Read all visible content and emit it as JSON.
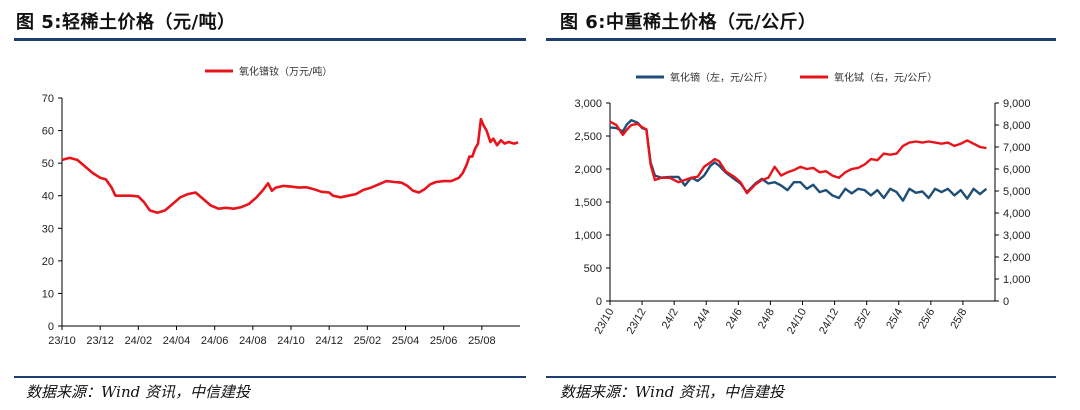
{
  "left_panel": {
    "title": "图 5:轻稀土价格（元/吨）",
    "source": "数据来源：Wind 资讯，中信建投"
  },
  "right_panel": {
    "title": "图 6:中重稀土价格（元/公斤）",
    "source": "数据来源：Wind 资讯，中信建投"
  },
  "colors": {
    "rule": "#1e3f73",
    "series_red": "#e8141c",
    "series_blue": "#1f4e79"
  },
  "chart_data": [
    {
      "type": "line",
      "title": "",
      "xlabel": "",
      "ylabel": "",
      "ylim": [
        0,
        70
      ],
      "yticks": [
        "0",
        "10",
        "20",
        "30",
        "40",
        "50",
        "60",
        "70"
      ],
      "xticks": [
        "23/10",
        "23/12",
        "24/02",
        "24/04",
        "24/06",
        "24/08",
        "24/10",
        "24/12",
        "25/02",
        "25/04",
        "25/06",
        "25/08"
      ],
      "legend_position": "top",
      "grid": false,
      "series": [
        {
          "name": "氧化镨钕（万元/吨）",
          "color": "#e8141c",
          "points": [
            [
              0,
              51
            ],
            [
              0.4,
              51.6
            ],
            [
              0.8,
              51
            ],
            [
              1.2,
              49
            ],
            [
              1.6,
              47
            ],
            [
              2.0,
              45.5
            ],
            [
              2.3,
              45
            ],
            [
              2.6,
              42.5
            ],
            [
              2.8,
              40
            ],
            [
              3.2,
              40
            ],
            [
              3.6,
              40
            ],
            [
              4.0,
              39.8
            ],
            [
              4.3,
              38
            ],
            [
              4.6,
              35.5
            ],
            [
              5.0,
              34.8
            ],
            [
              5.4,
              35.5
            ],
            [
              5.8,
              37.5
            ],
            [
              6.2,
              39.5
            ],
            [
              6.6,
              40.5
            ],
            [
              7.0,
              41
            ],
            [
              7.4,
              39
            ],
            [
              7.8,
              37
            ],
            [
              8.2,
              36
            ],
            [
              8.6,
              36.3
            ],
            [
              9.0,
              36
            ],
            [
              9.4,
              36.5
            ],
            [
              9.8,
              37.5
            ],
            [
              10.2,
              39.5
            ],
            [
              10.5,
              41.5
            ],
            [
              10.8,
              43.8
            ],
            [
              11.0,
              41.5
            ],
            [
              11.2,
              42.5
            ],
            [
              11.6,
              43
            ],
            [
              12.0,
              42.8
            ],
            [
              12.4,
              42.5
            ],
            [
              12.8,
              42.6
            ],
            [
              13.2,
              42
            ],
            [
              13.6,
              41.2
            ],
            [
              14.0,
              41
            ],
            [
              14.2,
              40
            ],
            [
              14.6,
              39.5
            ],
            [
              15.0,
              40
            ],
            [
              15.4,
              40.5
            ],
            [
              15.8,
              41.8
            ],
            [
              16.2,
              42.5
            ],
            [
              16.6,
              43.5
            ],
            [
              17.0,
              44.5
            ],
            [
              17.4,
              44.2
            ],
            [
              17.8,
              44
            ],
            [
              18.1,
              43
            ],
            [
              18.4,
              41.5
            ],
            [
              18.7,
              41
            ],
            [
              19.0,
              42
            ],
            [
              19.3,
              43.5
            ],
            [
              19.6,
              44.2
            ],
            [
              20.0,
              44.5
            ],
            [
              20.4,
              44.5
            ],
            [
              20.8,
              45.5
            ],
            [
              21.0,
              47
            ],
            [
              21.2,
              49.5
            ],
            [
              21.35,
              52
            ],
            [
              21.5,
              52
            ],
            [
              21.65,
              54.5
            ],
            [
              21.8,
              56
            ],
            [
              21.95,
              63.5
            ],
            [
              22.1,
              61.5
            ],
            [
              22.25,
              60
            ],
            [
              22.45,
              56.5
            ],
            [
              22.6,
              57.5
            ],
            [
              22.8,
              55.5
            ],
            [
              23.0,
              57
            ],
            [
              23.2,
              56
            ],
            [
              23.4,
              56.5
            ],
            [
              23.7,
              56
            ],
            [
              23.9,
              56.4
            ]
          ]
        }
      ]
    },
    {
      "type": "line",
      "title": "",
      "xlabel": "",
      "ylabel": "",
      "ylim": [
        0,
        3000
      ],
      "y2lim": [
        0,
        9000
      ],
      "yticks": [
        "0",
        "500",
        "1,000",
        "1,500",
        "2,000",
        "2,500",
        "3,000"
      ],
      "y2ticks": [
        "0",
        "1,000",
        "2,000",
        "3,000",
        "4,000",
        "5,000",
        "6,000",
        "7,000",
        "8,000",
        "9,000"
      ],
      "xticks": [
        "23/10",
        "23/12",
        "24/2",
        "24/4",
        "24/6",
        "24/8",
        "24/10",
        "24/12",
        "25/2",
        "25/4",
        "25/6",
        "25/8"
      ],
      "legend_position": "top",
      "grid": false,
      "series": [
        {
          "name": "氧化镝（左，元/公斤）",
          "color": "#1f4e79",
          "axis": "left",
          "points": [
            [
              0,
              2630
            ],
            [
              0.3,
              2620
            ],
            [
              0.6,
              2570
            ],
            [
              0.8,
              2680
            ],
            [
              1.0,
              2740
            ],
            [
              1.3,
              2700
            ],
            [
              1.5,
              2620
            ],
            [
              1.7,
              2600
            ],
            [
              1.9,
              2100
            ],
            [
              2.1,
              1900
            ],
            [
              2.4,
              1870
            ],
            [
              2.8,
              1880
            ],
            [
              3.2,
              1880
            ],
            [
              3.5,
              1750
            ],
            [
              3.8,
              1870
            ],
            [
              4.1,
              1820
            ],
            [
              4.4,
              1900
            ],
            [
              4.7,
              2050
            ],
            [
              4.9,
              2100
            ],
            [
              5.1,
              2050
            ],
            [
              5.4,
              1950
            ],
            [
              5.8,
              1850
            ],
            [
              6.1,
              1780
            ],
            [
              6.4,
              1650
            ],
            [
              6.8,
              1780
            ],
            [
              7.1,
              1850
            ],
            [
              7.4,
              1780
            ],
            [
              7.7,
              1800
            ],
            [
              8.0,
              1750
            ],
            [
              8.3,
              1680
            ],
            [
              8.6,
              1800
            ],
            [
              8.9,
              1800
            ],
            [
              9.2,
              1700
            ],
            [
              9.5,
              1760
            ],
            [
              9.8,
              1650
            ],
            [
              10.1,
              1680
            ],
            [
              10.4,
              1600
            ],
            [
              10.7,
              1560
            ],
            [
              11.0,
              1700
            ],
            [
              11.3,
              1630
            ],
            [
              11.6,
              1700
            ],
            [
              11.9,
              1680
            ],
            [
              12.2,
              1600
            ],
            [
              12.5,
              1680
            ],
            [
              12.8,
              1560
            ],
            [
              13.1,
              1700
            ],
            [
              13.4,
              1650
            ],
            [
              13.7,
              1520
            ],
            [
              14.0,
              1700
            ],
            [
              14.3,
              1640
            ],
            [
              14.6,
              1660
            ],
            [
              14.9,
              1560
            ],
            [
              15.2,
              1700
            ],
            [
              15.5,
              1650
            ],
            [
              15.8,
              1700
            ],
            [
              16.1,
              1600
            ],
            [
              16.4,
              1680
            ],
            [
              16.7,
              1550
            ],
            [
              17.0,
              1700
            ],
            [
              17.3,
              1620
            ],
            [
              17.6,
              1700
            ]
          ]
        },
        {
          "name": "氧化铽（右，元/公斤）",
          "color": "#e8141c",
          "axis": "right",
          "points": [
            [
              0,
              8150
            ],
            [
              0.3,
              8000
            ],
            [
              0.6,
              7550
            ],
            [
              0.8,
              7800
            ],
            [
              1.0,
              8000
            ],
            [
              1.3,
              8050
            ],
            [
              1.5,
              7900
            ],
            [
              1.7,
              7800
            ],
            [
              1.9,
              6200
            ],
            [
              2.1,
              5500
            ],
            [
              2.4,
              5600
            ],
            [
              2.8,
              5600
            ],
            [
              3.2,
              5400
            ],
            [
              3.5,
              5500
            ],
            [
              3.8,
              5600
            ],
            [
              4.1,
              5650
            ],
            [
              4.4,
              6100
            ],
            [
              4.7,
              6300
            ],
            [
              4.9,
              6450
            ],
            [
              5.1,
              6350
            ],
            [
              5.4,
              5900
            ],
            [
              5.8,
              5650
            ],
            [
              6.1,
              5400
            ],
            [
              6.4,
              4900
            ],
            [
              6.8,
              5300
            ],
            [
              7.1,
              5500
            ],
            [
              7.4,
              5600
            ],
            [
              7.7,
              6100
            ],
            [
              8.0,
              5700
            ],
            [
              8.3,
              5850
            ],
            [
              8.6,
              5950
            ],
            [
              8.9,
              6100
            ],
            [
              9.2,
              6000
            ],
            [
              9.5,
              6050
            ],
            [
              9.8,
              5850
            ],
            [
              10.1,
              5900
            ],
            [
              10.4,
              5700
            ],
            [
              10.7,
              5600
            ],
            [
              11.0,
              5850
            ],
            [
              11.3,
              6000
            ],
            [
              11.6,
              6050
            ],
            [
              11.9,
              6200
            ],
            [
              12.2,
              6450
            ],
            [
              12.5,
              6400
            ],
            [
              12.8,
              6700
            ],
            [
              13.1,
              6650
            ],
            [
              13.4,
              6700
            ],
            [
              13.7,
              7050
            ],
            [
              14.0,
              7200
            ],
            [
              14.3,
              7250
            ],
            [
              14.6,
              7200
            ],
            [
              14.9,
              7250
            ],
            [
              15.2,
              7200
            ],
            [
              15.5,
              7150
            ],
            [
              15.8,
              7200
            ],
            [
              16.1,
              7050
            ],
            [
              16.4,
              7150
            ],
            [
              16.7,
              7300
            ],
            [
              17.0,
              7150
            ],
            [
              17.3,
              7000
            ],
            [
              17.6,
              6950
            ]
          ]
        }
      ]
    }
  ]
}
